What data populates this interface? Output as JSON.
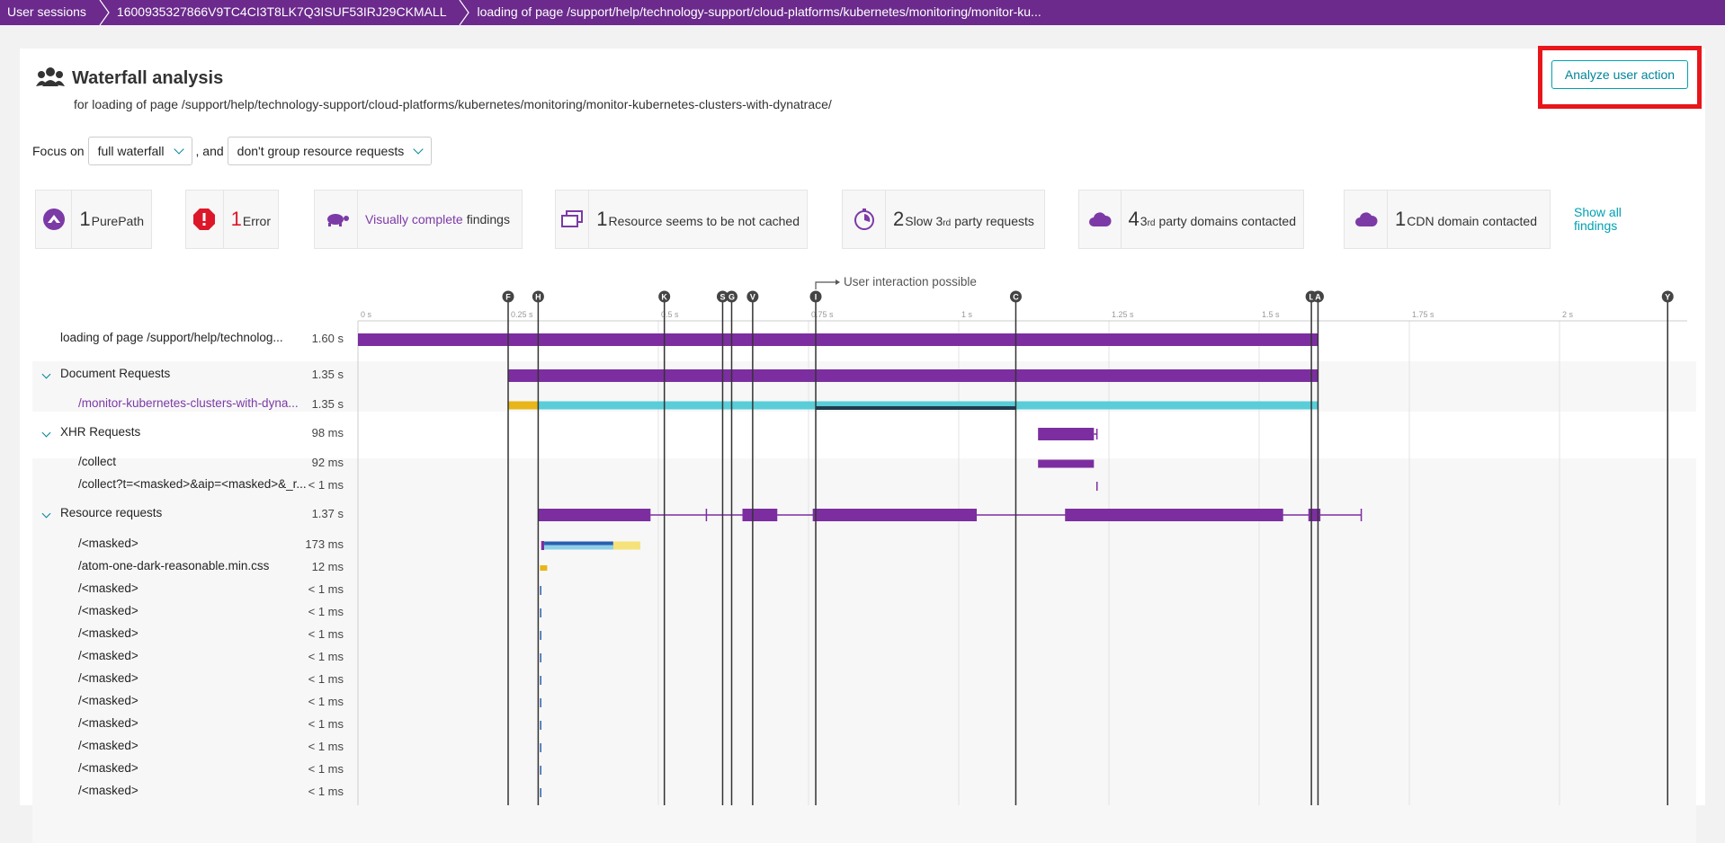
{
  "breadcrumbs": [
    "User sessions",
    "1600935327866V9TC4CI3T8LK7Q3ISUF53IRJ29CKMALL",
    "loading of page /support/help/technology-support/cloud-platforms/kubernetes/monitoring/monitor-ku..."
  ],
  "header": {
    "title": "Waterfall analysis",
    "subtitle": "for loading of page /support/help/technology-support/cloud-platforms/kubernetes/monitoring/monitor-kubernetes-clusters-with-dynatrace/",
    "analyze_button": "Analyze user action"
  },
  "focus": {
    "label": "Focus on",
    "waterfall_select": "full waterfall",
    "and_label": ", and",
    "group_select": "don't group resource requests"
  },
  "findings": [
    {
      "count": "1",
      "text": "PurePath",
      "icon": "purepath-icon",
      "color": "#7c3aa6"
    },
    {
      "count": "1",
      "text": "Error",
      "icon": "error-icon",
      "color": "#dc172a"
    },
    {
      "count": "",
      "text_link": "Visually complete",
      "text": "findings",
      "icon": "turtle-icon",
      "color": "#7c3aa6"
    },
    {
      "count": "1",
      "text": "Resource seems to be not cached",
      "icon": "windows-icon",
      "color": "#7c3aa6"
    },
    {
      "count": "2",
      "text_pre": "Slow 3",
      "sup": "rd",
      "text": "party requests",
      "icon": "stopwatch-icon",
      "color": "#7c3aa6"
    },
    {
      "count": "4",
      "text_pre": "3",
      "sup": "rd",
      "text": "party domains contacted",
      "icon": "cloud-icon",
      "color": "#7c3aa6"
    },
    {
      "count": "1",
      "text": "CDN domain contacted",
      "icon": "cloud-icon",
      "color": "#7c3aa6"
    }
  ],
  "show_all": [
    "Show all",
    "findings"
  ],
  "timeline": {
    "ticks": [
      "0 s",
      "0.25 s",
      "0.5 s",
      "0.75 s",
      "1 s",
      "1.25 s",
      "1.5 s",
      "1.75 s",
      "2 s"
    ],
    "markers": [
      {
        "label": "F",
        "t": 0.25
      },
      {
        "label": "H",
        "t": 0.3
      },
      {
        "label": "K",
        "t": 0.51
      },
      {
        "label": "S",
        "t": 0.607
      },
      {
        "label": "G",
        "t": 0.622
      },
      {
        "label": "V",
        "t": 0.657
      },
      {
        "label": "I",
        "t": 0.762
      },
      {
        "label": "C",
        "t": 1.095
      },
      {
        "label": "L",
        "t": 1.587
      },
      {
        "label": "A",
        "t": 1.598
      },
      {
        "label": "Y",
        "t": 2.18
      }
    ],
    "interaction_label": "User interaction possible"
  },
  "rows": [
    {
      "label": "loading of page /support/help/technolog...",
      "dur": "1.60 s",
      "indent": 0,
      "kind": "plain"
    },
    {
      "label": "Document Requests",
      "dur": "1.35 s",
      "indent": 0,
      "kind": "group"
    },
    {
      "label": "/monitor-kubernetes-clusters-with-dyna...",
      "dur": "1.35 s",
      "indent": 1,
      "kind": "link"
    },
    {
      "label": "XHR Requests",
      "dur": "98 ms",
      "indent": 0,
      "kind": "group"
    },
    {
      "label": "/collect",
      "dur": "92 ms",
      "indent": 1,
      "kind": "plain"
    },
    {
      "label": "/collect?t=<masked>&aip=<masked>&_r...",
      "dur": "< 1 ms",
      "indent": 1,
      "kind": "plain"
    },
    {
      "label": "Resource requests",
      "dur": "1.37 s",
      "indent": 0,
      "kind": "group"
    },
    {
      "label": "/<masked>",
      "dur": "173 ms",
      "indent": 1,
      "kind": "plain"
    },
    {
      "label": "/atom-one-dark-reasonable.min.css",
      "dur": "12 ms",
      "indent": 1,
      "kind": "plain"
    },
    {
      "label": "/<masked>",
      "dur": "< 1 ms",
      "indent": 1,
      "kind": "plain"
    },
    {
      "label": "/<masked>",
      "dur": "< 1 ms",
      "indent": 1,
      "kind": "plain"
    },
    {
      "label": "/<masked>",
      "dur": "< 1 ms",
      "indent": 1,
      "kind": "plain"
    },
    {
      "label": "/<masked>",
      "dur": "< 1 ms",
      "indent": 1,
      "kind": "plain"
    },
    {
      "label": "/<masked>",
      "dur": "< 1 ms",
      "indent": 1,
      "kind": "plain"
    },
    {
      "label": "/<masked>",
      "dur": "< 1 ms",
      "indent": 1,
      "kind": "plain"
    },
    {
      "label": "/<masked>",
      "dur": "< 1 ms",
      "indent": 1,
      "kind": "plain"
    },
    {
      "label": "/<masked>",
      "dur": "< 1 ms",
      "indent": 1,
      "kind": "plain"
    },
    {
      "label": "/<masked>",
      "dur": "< 1 ms",
      "indent": 1,
      "kind": "plain"
    },
    {
      "label": "/<masked>",
      "dur": "< 1 ms",
      "indent": 1,
      "kind": "plain"
    }
  ],
  "colors": {
    "purple": "#6b2a8c",
    "bar": "#7c2ea0",
    "doc_yellow": "#e8b61a",
    "doc_cyan": "#5acdd8",
    "dark": "#1f3b4d",
    "blue": "#2a5fb0",
    "lightblue": "#8fd0e8",
    "paleyellow": "#f5e27a",
    "teal": "#00849a"
  }
}
